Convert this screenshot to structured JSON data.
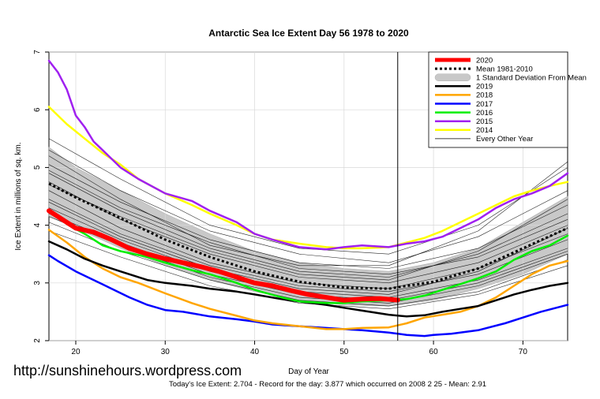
{
  "watermark": "http://sunshinehours.wordpress.com",
  "footer": "Today's Ice Extent: 2.704  - Record for the day: 3.877 which occurred on 2008 2 25  - Mean: 2.91",
  "colors": {
    "y2020": "#ff0000",
    "mean": "#000000",
    "sd_band": "#c8c8c8",
    "y2019": "#000000",
    "y2018": "#ffa500",
    "y2017": "#0000ff",
    "y2016": "#00ee00",
    "y2015": "#a020f0",
    "y2014": "#ffff00",
    "other": "#000000"
  },
  "chart_data": {
    "type": "line",
    "title": "Antarctic Sea Ice Extent Day 56 1978 to 2020",
    "xlabel": "Day of Year",
    "ylabel": "Ice Extent in millions of sq. km.",
    "xlim": [
      17,
      75
    ],
    "ylim": [
      2,
      7
    ],
    "xticks": [
      20,
      30,
      40,
      50,
      60,
      70
    ],
    "yticks": [
      2,
      3,
      4,
      5,
      6,
      7
    ],
    "current_day": 56,
    "legend": [
      {
        "label": "2020",
        "key": "y2020",
        "style": "thick"
      },
      {
        "label": "Mean 1981-2010",
        "key": "mean",
        "style": "dotted"
      },
      {
        "label": "1 Standard Deviation From Mean",
        "key": "sd_band",
        "style": "band"
      },
      {
        "label": "2019",
        "key": "y2019",
        "style": "line"
      },
      {
        "label": "2018",
        "key": "y2018",
        "style": "line"
      },
      {
        "label": "2017",
        "key": "y2017",
        "style": "line"
      },
      {
        "label": "2016",
        "key": "y2016",
        "style": "line"
      },
      {
        "label": "2015",
        "key": "y2015",
        "style": "line"
      },
      {
        "label": "2014",
        "key": "y2014",
        "style": "line"
      },
      {
        "label": "Every Other Year",
        "key": "other",
        "style": "thin"
      }
    ],
    "sd_band": {
      "x": [
        17,
        20,
        25,
        30,
        35,
        40,
        45,
        50,
        55,
        60,
        65,
        70,
        75
      ],
      "upper": [
        5.35,
        5.0,
        4.6,
        4.2,
        3.85,
        3.55,
        3.35,
        3.25,
        3.2,
        3.35,
        3.6,
        4.05,
        4.5
      ],
      "lower": [
        4.15,
        3.95,
        3.6,
        3.3,
        3.05,
        2.85,
        2.7,
        2.62,
        2.6,
        2.7,
        2.9,
        3.15,
        3.5
      ]
    },
    "series": [
      {
        "name": "Every Other Year",
        "key": "other",
        "x": [
          17,
          25,
          35,
          45,
          55,
          65,
          75
        ],
        "y": [
          5.3,
          4.6,
          3.9,
          3.5,
          3.35,
          3.8,
          4.6
        ]
      },
      {
        "name": "Every Other Year",
        "key": "other",
        "x": [
          17,
          25,
          35,
          45,
          55,
          65,
          75
        ],
        "y": [
          5.05,
          4.4,
          3.75,
          3.35,
          3.25,
          3.6,
          4.35
        ]
      },
      {
        "name": "Every Other Year",
        "key": "other",
        "x": [
          17,
          25,
          35,
          45,
          55,
          65,
          75
        ],
        "y": [
          4.9,
          4.25,
          3.6,
          3.2,
          3.1,
          3.5,
          4.2
        ]
      },
      {
        "name": "Every Other Year",
        "key": "other",
        "x": [
          17,
          25,
          35,
          45,
          55,
          65,
          75
        ],
        "y": [
          4.75,
          4.1,
          3.5,
          3.1,
          3.0,
          3.35,
          4.0
        ]
      },
      {
        "name": "Every Other Year",
        "key": "other",
        "x": [
          17,
          25,
          35,
          45,
          55,
          65,
          75
        ],
        "y": [
          4.6,
          3.95,
          3.35,
          3.0,
          2.9,
          3.25,
          3.85
        ]
      },
      {
        "name": "Every Other Year",
        "key": "other",
        "x": [
          17,
          25,
          35,
          45,
          55,
          65,
          75
        ],
        "y": [
          4.45,
          3.85,
          3.3,
          2.95,
          2.85,
          3.15,
          3.75
        ]
      },
      {
        "name": "Every Other Year",
        "key": "other",
        "x": [
          17,
          25,
          35,
          45,
          55,
          65,
          75
        ],
        "y": [
          4.3,
          3.75,
          3.2,
          2.85,
          2.75,
          3.05,
          3.6
        ]
      },
      {
        "name": "Every Other Year",
        "key": "other",
        "x": [
          17,
          25,
          35,
          45,
          55,
          65,
          75
        ],
        "y": [
          4.15,
          3.65,
          3.1,
          2.75,
          2.65,
          2.95,
          3.5
        ]
      },
      {
        "name": "Every Other Year",
        "key": "other",
        "x": [
          17,
          25,
          35,
          45,
          55,
          65,
          75
        ],
        "y": [
          4.05,
          3.55,
          3.05,
          2.7,
          2.6,
          2.85,
          3.4
        ]
      },
      {
        "name": "Every Other Year",
        "key": "other",
        "x": [
          17,
          25,
          35,
          45,
          55,
          65,
          75
        ],
        "y": [
          3.9,
          3.45,
          2.95,
          2.65,
          2.55,
          2.8,
          3.3
        ]
      },
      {
        "name": "Every Other Year",
        "key": "other",
        "x": [
          17,
          25,
          35,
          45,
          55,
          65,
          75
        ],
        "y": [
          5.5,
          4.8,
          4.0,
          3.6,
          3.5,
          4.0,
          5.0
        ]
      },
      {
        "name": "Every Other Year",
        "key": "other",
        "x": [
          17,
          25,
          35,
          45,
          55,
          65,
          75
        ],
        "y": [
          5.2,
          4.45,
          3.65,
          3.3,
          3.3,
          3.9,
          5.1
        ]
      },
      {
        "name": "Every Other Year",
        "key": "other",
        "x": [
          17,
          25,
          35,
          45,
          55,
          65,
          75
        ],
        "y": [
          4.7,
          4.15,
          3.55,
          3.15,
          3.05,
          3.55,
          4.45
        ]
      },
      {
        "name": "Every Other Year",
        "key": "other",
        "x": [
          17,
          25,
          35,
          45,
          55,
          65,
          75
        ],
        "y": [
          4.4,
          3.8,
          3.25,
          2.9,
          2.8,
          3.2,
          3.95
        ]
      },
      {
        "name": "Every Other Year",
        "key": "other",
        "x": [
          17,
          25,
          35,
          45,
          55,
          65,
          75
        ],
        "y": [
          4.95,
          4.3,
          3.7,
          3.25,
          3.15,
          3.45,
          4.1
        ]
      },
      {
        "name": "Every Other Year",
        "key": "other",
        "x": [
          17,
          25,
          35,
          45,
          55,
          65,
          75
        ],
        "y": [
          4.2,
          3.7,
          3.15,
          2.8,
          2.7,
          3.0,
          3.55
        ]
      },
      {
        "name": "2017",
        "key": "y2017",
        "width": 2.5,
        "x": [
          17,
          18,
          20,
          22,
          24,
          26,
          28,
          30,
          32,
          35,
          38,
          40,
          42,
          45,
          48,
          50,
          52,
          55,
          57,
          59,
          60,
          62,
          65,
          68,
          70,
          72,
          75
        ],
        "y": [
          3.48,
          3.38,
          3.2,
          3.05,
          2.9,
          2.75,
          2.62,
          2.53,
          2.5,
          2.42,
          2.37,
          2.33,
          2.28,
          2.25,
          2.22,
          2.2,
          2.18,
          2.14,
          2.1,
          2.08,
          2.1,
          2.12,
          2.18,
          2.3,
          2.4,
          2.5,
          2.62
        ]
      },
      {
        "name": "2018",
        "key": "y2018",
        "width": 2.5,
        "x": [
          17,
          19,
          21,
          23,
          25,
          27,
          30,
          33,
          35,
          38,
          40,
          42,
          45,
          48,
          50,
          52,
          55,
          57,
          59,
          61,
          63,
          65,
          67,
          69,
          71,
          73,
          75
        ],
        "y": [
          3.92,
          3.7,
          3.45,
          3.25,
          3.1,
          3.0,
          2.82,
          2.65,
          2.55,
          2.43,
          2.35,
          2.3,
          2.25,
          2.2,
          2.2,
          2.22,
          2.23,
          2.3,
          2.4,
          2.45,
          2.5,
          2.6,
          2.75,
          2.95,
          3.15,
          3.3,
          3.38
        ]
      },
      {
        "name": "2019",
        "key": "y2019",
        "width": 2.5,
        "x": [
          17,
          19,
          21,
          23,
          25,
          28,
          30,
          33,
          35,
          38,
          40,
          43,
          45,
          48,
          50,
          52,
          55,
          57,
          59,
          61,
          63,
          65,
          67,
          69,
          71,
          73,
          75
        ],
        "y": [
          3.72,
          3.58,
          3.42,
          3.3,
          3.2,
          3.05,
          3.0,
          2.95,
          2.9,
          2.85,
          2.8,
          2.72,
          2.68,
          2.62,
          2.57,
          2.52,
          2.45,
          2.42,
          2.44,
          2.5,
          2.55,
          2.6,
          2.7,
          2.8,
          2.88,
          2.95,
          3.0
        ]
      },
      {
        "name": "2016",
        "key": "y2016",
        "width": 2.5,
        "x": [
          17,
          19,
          21,
          23,
          25,
          28,
          30,
          33,
          35,
          38,
          40,
          43,
          45,
          48,
          50,
          52,
          55,
          57,
          59,
          61,
          63,
          65,
          67,
          69,
          71,
          73,
          75
        ],
        "y": [
          4.25,
          4.02,
          3.85,
          3.65,
          3.55,
          3.45,
          3.35,
          3.22,
          3.15,
          3.0,
          2.88,
          2.75,
          2.68,
          2.65,
          2.65,
          2.68,
          2.7,
          2.72,
          2.78,
          2.88,
          2.98,
          3.08,
          3.2,
          3.4,
          3.55,
          3.65,
          3.82
        ]
      },
      {
        "name": "2014",
        "key": "y2014",
        "width": 2.5,
        "x": [
          17,
          19,
          21,
          23,
          25,
          27,
          30,
          33,
          35,
          38,
          40,
          42,
          45,
          48,
          50,
          52,
          55,
          57,
          59,
          61,
          63,
          65,
          67,
          69,
          71,
          73,
          75
        ],
        "y": [
          6.05,
          5.75,
          5.5,
          5.25,
          5.05,
          4.8,
          4.55,
          4.35,
          4.2,
          4.0,
          3.85,
          3.75,
          3.68,
          3.62,
          3.6,
          3.6,
          3.62,
          3.7,
          3.78,
          3.9,
          4.05,
          4.2,
          4.35,
          4.5,
          4.6,
          4.68,
          4.75
        ]
      },
      {
        "name": "2015",
        "key": "y2015",
        "width": 2.5,
        "x": [
          17,
          18,
          19,
          20,
          21,
          22,
          23,
          24,
          25,
          27,
          30,
          33,
          35,
          38,
          40,
          42,
          45,
          48,
          50,
          52,
          55,
          57,
          59,
          61,
          63,
          65,
          67,
          69,
          71,
          73,
          75
        ],
        "y": [
          6.85,
          6.65,
          6.35,
          5.9,
          5.7,
          5.45,
          5.3,
          5.15,
          5.0,
          4.8,
          4.55,
          4.42,
          4.25,
          4.05,
          3.85,
          3.75,
          3.62,
          3.58,
          3.62,
          3.65,
          3.62,
          3.68,
          3.72,
          3.8,
          3.95,
          4.1,
          4.3,
          4.45,
          4.55,
          4.68,
          4.9
        ]
      },
      {
        "name": "Mean 1981-2010",
        "key": "mean",
        "width": 3,
        "dash": "3,3",
        "x": [
          17,
          20,
          25,
          30,
          35,
          40,
          45,
          50,
          55,
          60,
          65,
          70,
          75
        ],
        "y": [
          4.72,
          4.48,
          4.12,
          3.75,
          3.45,
          3.2,
          3.02,
          2.92,
          2.9,
          3.02,
          3.25,
          3.6,
          3.95
        ]
      },
      {
        "name": "2020",
        "key": "y2020",
        "width": 6,
        "x": [
          17,
          18,
          20,
          22,
          24,
          26,
          28,
          30,
          32,
          34,
          36,
          38,
          40,
          42,
          44,
          46,
          48,
          50,
          52,
          54,
          56
        ],
        "y": [
          4.25,
          4.15,
          3.95,
          3.88,
          3.75,
          3.6,
          3.5,
          3.42,
          3.35,
          3.28,
          3.2,
          3.1,
          3.0,
          2.95,
          2.87,
          2.8,
          2.75,
          2.7,
          2.72,
          2.73,
          2.704
        ]
      }
    ]
  }
}
